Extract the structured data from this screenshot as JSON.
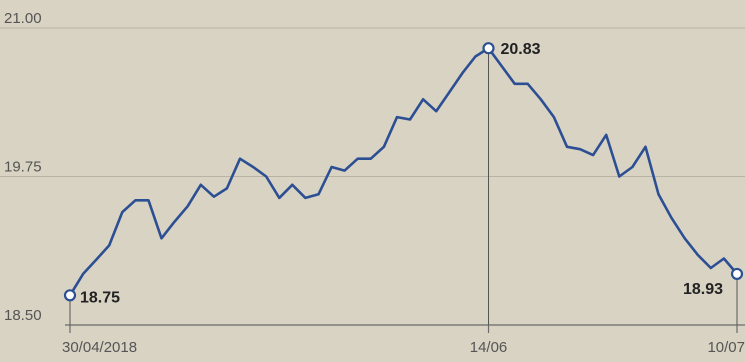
{
  "chart_data": {
    "type": "line",
    "title": "",
    "xlabel": "",
    "ylabel": "",
    "ylim": [
      18.5,
      21.0
    ],
    "y_ticks": [
      "21.00",
      "19.75",
      "18.50"
    ],
    "x_tick_labels": [
      "30/04/2018",
      "14/06",
      "10/07"
    ],
    "x_tick_positions": [
      0,
      32,
      51
    ],
    "grid": "horizontal",
    "series": [
      {
        "color": "#2c4f93",
        "values": [
          18.75,
          18.93,
          19.05,
          19.17,
          19.45,
          19.55,
          19.55,
          19.23,
          19.37,
          19.5,
          19.68,
          19.58,
          19.65,
          19.9,
          19.83,
          19.75,
          19.57,
          19.68,
          19.57,
          19.6,
          19.83,
          19.8,
          19.9,
          19.9,
          20.0,
          20.25,
          20.23,
          20.4,
          20.3,
          20.46,
          20.62,
          20.76,
          20.83,
          20.68,
          20.53,
          20.53,
          20.4,
          20.25,
          20.0,
          19.98,
          19.93,
          20.1,
          19.75,
          19.83,
          20.0,
          19.6,
          19.4,
          19.23,
          19.09,
          18.98,
          19.06,
          18.93
        ]
      }
    ],
    "annotations": [
      {
        "text": "18.75",
        "index": 0
      },
      {
        "text": "20.83",
        "index": 32
      },
      {
        "text": "18.93",
        "index": 51
      }
    ]
  }
}
